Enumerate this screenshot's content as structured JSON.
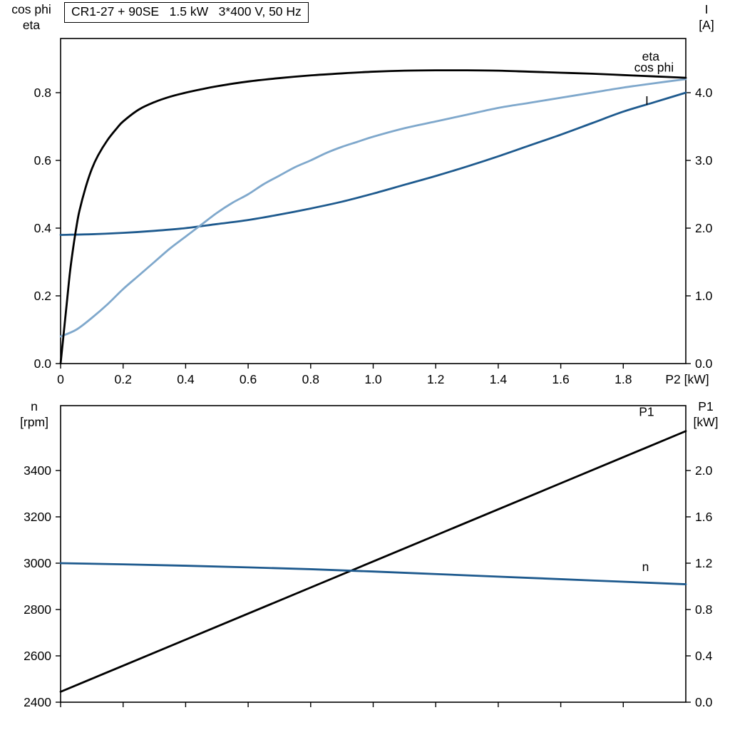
{
  "colors": {
    "black": "#000000",
    "dark_blue": "#1e5a8e",
    "light_blue": "#7fa8cc"
  },
  "chart_data": [
    {
      "type": "line",
      "panel": "top",
      "title": "CR1-27 + 90SE   1.5 kW   3*400 V, 50 Hz",
      "xlabel": "P2 [kW]",
      "ylabel_left": [
        "cos phi",
        "eta"
      ],
      "ylabel_right": [
        "I",
        "[A]"
      ],
      "xlim": [
        0,
        2.0
      ],
      "x_ticks": [
        0,
        0.2,
        0.4,
        0.6,
        0.8,
        1.0,
        1.2,
        1.4,
        1.6,
        1.8
      ],
      "x_tick_labels": [
        "0",
        "0.2",
        "0.4",
        "0.6",
        "0.8",
        "1.0",
        "1.2",
        "1.4",
        "1.6",
        "1.8"
      ],
      "ylim_left": [
        0,
        0.96
      ],
      "y_ticks_left": [
        0,
        0.2,
        0.4,
        0.6,
        0.8
      ],
      "y_tick_labels_left": [
        "0.0",
        "0.2",
        "0.4",
        "0.6",
        "0.8"
      ],
      "ylim_right": [
        0,
        4.8
      ],
      "y_ticks_right": [
        0,
        1.0,
        2.0,
        3.0,
        4.0
      ],
      "y_tick_labels_right": [
        "0.0",
        "1.0",
        "2.0",
        "3.0",
        "4.0"
      ],
      "grid": false,
      "legend_position": "curve-end-labels",
      "series": [
        {
          "name": "I",
          "axis": "right",
          "color": "dark_blue",
          "label_at": [
            1.87,
            3.82
          ],
          "points": [
            [
              0,
              1.9
            ],
            [
              0.1,
              1.91
            ],
            [
              0.2,
              1.93
            ],
            [
              0.3,
              1.96
            ],
            [
              0.4,
              2.0
            ],
            [
              0.5,
              2.06
            ],
            [
              0.6,
              2.12
            ],
            [
              0.7,
              2.2
            ],
            [
              0.8,
              2.29
            ],
            [
              0.9,
              2.39
            ],
            [
              1.0,
              2.51
            ],
            [
              1.1,
              2.64
            ],
            [
              1.2,
              2.77
            ],
            [
              1.3,
              2.91
            ],
            [
              1.4,
              3.06
            ],
            [
              1.5,
              3.22
            ],
            [
              1.6,
              3.38
            ],
            [
              1.7,
              3.55
            ],
            [
              1.8,
              3.72
            ],
            [
              1.9,
              3.86
            ],
            [
              2.0,
              4.0
            ]
          ]
        },
        {
          "name": "cos phi",
          "axis": "left",
          "color": "light_blue",
          "label_at": [
            1.835,
            0.862
          ],
          "points": [
            [
              0,
              0.08
            ],
            [
              0.05,
              0.1
            ],
            [
              0.1,
              0.135
            ],
            [
              0.15,
              0.175
            ],
            [
              0.2,
              0.22
            ],
            [
              0.25,
              0.26
            ],
            [
              0.3,
              0.3
            ],
            [
              0.35,
              0.34
            ],
            [
              0.4,
              0.375
            ],
            [
              0.45,
              0.41
            ],
            [
              0.5,
              0.445
            ],
            [
              0.55,
              0.475
            ],
            [
              0.6,
              0.5
            ],
            [
              0.65,
              0.53
            ],
            [
              0.7,
              0.555
            ],
            [
              0.75,
              0.58
            ],
            [
              0.8,
              0.6
            ],
            [
              0.85,
              0.622
            ],
            [
              0.9,
              0.64
            ],
            [
              0.95,
              0.655
            ],
            [
              1.0,
              0.67
            ],
            [
              1.1,
              0.695
            ],
            [
              1.2,
              0.715
            ],
            [
              1.3,
              0.735
            ],
            [
              1.4,
              0.755
            ],
            [
              1.5,
              0.77
            ],
            [
              1.6,
              0.785
            ],
            [
              1.7,
              0.8
            ],
            [
              1.8,
              0.815
            ],
            [
              1.9,
              0.828
            ],
            [
              2.0,
              0.84
            ]
          ]
        },
        {
          "name": "eta",
          "axis": "left",
          "color": "black",
          "label_at": [
            1.86,
            0.895
          ],
          "points": [
            [
              0,
              0
            ],
            [
              0.01,
              0.09
            ],
            [
              0.02,
              0.18
            ],
            [
              0.03,
              0.27
            ],
            [
              0.04,
              0.34
            ],
            [
              0.05,
              0.4
            ],
            [
              0.06,
              0.45
            ],
            [
              0.08,
              0.52
            ],
            [
              0.1,
              0.575
            ],
            [
              0.12,
              0.615
            ],
            [
              0.15,
              0.66
            ],
            [
              0.18,
              0.695
            ],
            [
              0.2,
              0.715
            ],
            [
              0.25,
              0.75
            ],
            [
              0.3,
              0.772
            ],
            [
              0.35,
              0.788
            ],
            [
              0.4,
              0.8
            ],
            [
              0.45,
              0.81
            ],
            [
              0.5,
              0.819
            ],
            [
              0.6,
              0.833
            ],
            [
              0.7,
              0.843
            ],
            [
              0.8,
              0.851
            ],
            [
              0.9,
              0.857
            ],
            [
              1.0,
              0.862
            ],
            [
              1.1,
              0.865
            ],
            [
              1.2,
              0.866
            ],
            [
              1.3,
              0.866
            ],
            [
              1.4,
              0.865
            ],
            [
              1.5,
              0.862
            ],
            [
              1.6,
              0.859
            ],
            [
              1.7,
              0.856
            ],
            [
              1.8,
              0.852
            ],
            [
              1.9,
              0.848
            ],
            [
              2.0,
              0.844
            ]
          ]
        }
      ]
    },
    {
      "type": "line",
      "panel": "bottom",
      "title": "",
      "xlabel": "",
      "ylabel_left": [
        "n",
        "[rpm]"
      ],
      "ylabel_right": [
        "P1",
        "[kW]"
      ],
      "xlim": [
        0,
        2.0
      ],
      "x_ticks": [
        0,
        0.2,
        0.4,
        0.6,
        0.8,
        1.0,
        1.2,
        1.4,
        1.6,
        1.8
      ],
      "x_tick_labels": [],
      "ylim_left": [
        2400,
        3680
      ],
      "y_ticks_left": [
        2400,
        2600,
        2800,
        3000,
        3200,
        3400
      ],
      "y_tick_labels_left": [
        "2400",
        "2600",
        "2800",
        "3000",
        "3200",
        "3400"
      ],
      "ylim_right": [
        0,
        2.56
      ],
      "y_ticks_right": [
        0,
        0.4,
        0.8,
        1.2,
        1.6,
        2.0
      ],
      "y_tick_labels_right": [
        "0.0",
        "0.4",
        "0.8",
        "1.2",
        "1.6",
        "2.0"
      ],
      "grid": false,
      "legend_position": "curve-end-labels",
      "series": [
        {
          "name": "P1",
          "axis": "right",
          "color": "black",
          "label_at": [
            1.85,
            2.47
          ],
          "points": [
            [
              0,
              0.09
            ],
            [
              0.2,
              0.315
            ],
            [
              0.4,
              0.54
            ],
            [
              0.6,
              0.765
            ],
            [
              0.8,
              0.99
            ],
            [
              1.0,
              1.215
            ],
            [
              1.2,
              1.44
            ],
            [
              1.4,
              1.665
            ],
            [
              1.6,
              1.89
            ],
            [
              1.8,
              2.115
            ],
            [
              2.0,
              2.34
            ]
          ]
        },
        {
          "name": "n",
          "axis": "left",
          "color": "dark_blue",
          "label_at": [
            1.86,
            2966
          ],
          "points": [
            [
              0,
              3000
            ],
            [
              0.2,
              2995
            ],
            [
              0.4,
              2989
            ],
            [
              0.6,
              2982
            ],
            [
              0.8,
              2974
            ],
            [
              1.0,
              2964
            ],
            [
              1.2,
              2953
            ],
            [
              1.4,
              2942
            ],
            [
              1.6,
              2931
            ],
            [
              1.8,
              2920
            ],
            [
              2.0,
              2909
            ]
          ]
        }
      ]
    }
  ]
}
